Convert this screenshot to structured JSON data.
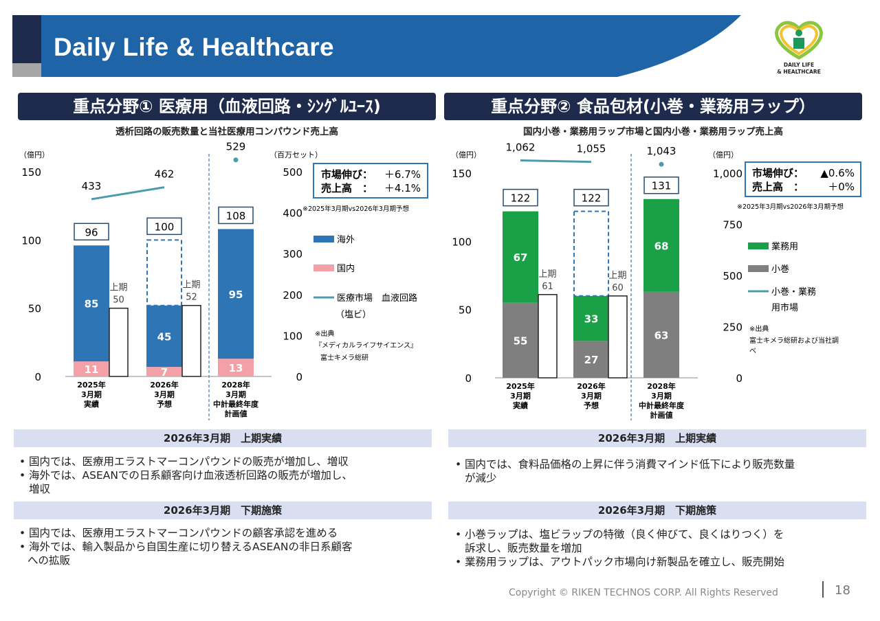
{
  "header": {
    "title": "Daily Life & Healthcare",
    "logo_line1": "DAILY LIFE",
    "logo_line2": "& HEALTHCARE"
  },
  "colors": {
    "navy": "#1f2b4d",
    "header_blue": "#2064a8",
    "blue_bar": "#2e75b6",
    "pink_bar": "#f4a0a8",
    "green_bar": "#1aa148",
    "gray_bar": "#7f7f7f",
    "teal_line": "#4b9bad",
    "band_bg": "#d9def0"
  },
  "left": {
    "section_title": "重点分野① 医療用（血液回路・ｼﾝｸﾞﾙﾕｰｽ)",
    "subtitle": "透析回路の販売数量と当社医療用コンパウンド売上高",
    "chart_data": {
      "type": "bar",
      "title": "透析回路の販売数量と当社医療用コンパウンド売上高",
      "y_left_label": "（億円）",
      "y_right_label": "（百万セット）",
      "y_left_ticks": [
        "150",
        "100",
        "50",
        "0"
      ],
      "y_right_ticks": [
        "500",
        "400",
        "300",
        "200",
        "100",
        "0"
      ],
      "ylim_left": [
        0,
        150
      ],
      "ylim_right": [
        0,
        500
      ],
      "categories": [
        {
          "label1": "2025年",
          "label2": "3月期",
          "label3": "実績",
          "label4": ""
        },
        {
          "label1": "2026年",
          "label2": "3月期",
          "label3": "予想",
          "label4": ""
        },
        {
          "label1": "2028年",
          "label2": "3月期",
          "label3": "中計最終年度",
          "label4": "計画値"
        }
      ],
      "series": [
        {
          "name": "国内",
          "values": [
            11,
            7,
            13
          ]
        },
        {
          "name": "海外",
          "values": [
            85,
            45,
            95
          ]
        }
      ],
      "totals": [
        "96",
        "100",
        "108"
      ],
      "first_half": [
        {
          "label": "上期",
          "value": 50
        },
        {
          "label": "上期",
          "value": 52
        }
      ],
      "market_line": {
        "name": "医療市場　血液回路",
        "name2": "（塩ビ）",
        "values": [
          433,
          462,
          529
        ]
      },
      "legend": {
        "overseas": "海外",
        "domestic": "国内",
        "market": "医療市場　血液回路",
        "market2": "（塩ビ）"
      },
      "growth_box": {
        "line1_label": "市場伸び：",
        "line1_value": "＋6.7%",
        "line2_label": "売上高　：",
        "line2_value": "＋4.1%"
      },
      "growth_note": "※2025年3月期vs2026年3月期予想",
      "source_lines": [
        "※出典",
        "『メディカルライフサイエンス』",
        "富士キメラ総研"
      ]
    },
    "h1_title": "2026年3月期　上期実績",
    "h1_bullets": [
      "国内では、医療用エラストマーコンパウンドの販売が増加し、増収",
      "海外では、ASEANでの日系顧客向け血液透析回路の販売が増加し、",
      "増収"
    ],
    "h2_title": "2026年3月期　下期施策",
    "h2_bullets": [
      "国内では、医療用エラストマーコンパウンドの顧客承認を進める",
      "海外では、輸入製品から自国生産に切り替えるASEANの非日系顧客",
      "への拡販"
    ]
  },
  "right": {
    "section_title": "重点分野② 食品包材(小巻・業務用ラップ）",
    "subtitle": "国内小巻・業務用ラップ市場と国内小巻・業務用ラップ売上高",
    "chart_data": {
      "type": "bar",
      "title": "国内小巻・業務用ラップ市場と国内小巻・業務用ラップ売上高",
      "y_left_label": "（億円）",
      "y_right_label": "（億円）",
      "y_left_ticks": [
        "150",
        "100",
        "50",
        "0"
      ],
      "y_right_ticks": [
        "1,000",
        "750",
        "500",
        "250",
        "0"
      ],
      "ylim_left": [
        0,
        150
      ],
      "ylim_right": [
        0,
        1000
      ],
      "categories": [
        {
          "label1": "2025年",
          "label2": "3月期",
          "label3": "実績",
          "label4": ""
        },
        {
          "label1": "2026年",
          "label2": "3月期",
          "label3": "予想",
          "label4": ""
        },
        {
          "label1": "2028年",
          "label2": "3月期",
          "label3": "中計最終年度",
          "label4": "計画値"
        }
      ],
      "series": [
        {
          "name": "小巻",
          "values": [
            55,
            27,
            63
          ]
        },
        {
          "name": "業務用",
          "values": [
            67,
            33,
            68
          ]
        }
      ],
      "totals": [
        "122",
        "122",
        "131"
      ],
      "first_half": [
        {
          "label": "上期",
          "value": 61
        },
        {
          "label": "上期",
          "value": 60
        }
      ],
      "market_line": {
        "name": "小巻・業務",
        "name2": "用市場",
        "values": [
          1062,
          1055,
          1043
        ]
      },
      "market_labels": [
        "1,062",
        "1,055",
        "1,043"
      ],
      "legend": {
        "commercial": "業務用",
        "small": "小巻",
        "market": "小巻・業務",
        "market2": "用市場"
      },
      "growth_box": {
        "line1_label": "市場伸び：",
        "line1_value": "▲0.6%",
        "line2_label": "売上高　：",
        "line2_value": "＋0%"
      },
      "growth_note": "※2025年3月期vs2026年3月期予想",
      "source_lines": [
        "※出典",
        "富士キメラ総研および当社調",
        "べ"
      ]
    },
    "h1_title": "2026年3月期　上期実績",
    "h1_bullets": [
      "国内では、食料品価格の上昇に伴う消費マインド低下により販売数量",
      "が減少"
    ],
    "h2_title": "2026年3月期　下期施策",
    "h2_bullets": [
      "小巻ラップは、塩ビラップの特徴（良く伸びて、良くはりつく）を",
      "訴求し、販売数量を増加",
      "業務用ラップは、アウトパック市場向け新製品を確立し、販売開始"
    ]
  },
  "footer": {
    "copyright": "Copyright © RIKEN TECHNOS CORP. All Rights Reserved",
    "page": "18"
  }
}
